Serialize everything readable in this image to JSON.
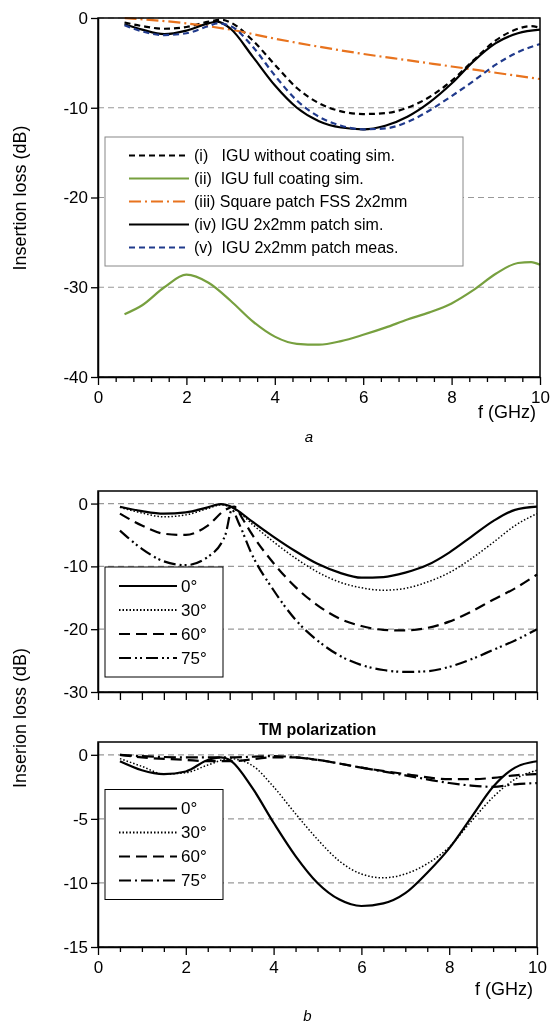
{
  "chart_data": [
    {
      "type": "line",
      "ylabel": "Insertion loss (dB)",
      "xlabel": "f (GHz)",
      "annotations": [
        "a"
      ],
      "xlim": [
        0,
        10
      ],
      "ylim": [
        -40,
        0
      ],
      "xticks": [
        0,
        {
          "value": 0.4,
          "label": null
        },
        {
          "value": 0.8,
          "label": null
        },
        {
          "value": 1.2,
          "label": null
        },
        {
          "value": 1.6,
          "label": null
        },
        2,
        {
          "value": 2.4,
          "label": null
        },
        {
          "value": 2.8,
          "label": null
        },
        {
          "value": 3.2,
          "label": null
        },
        {
          "value": 3.6,
          "label": null
        },
        4,
        {
          "value": 4.4,
          "label": null
        },
        {
          "value": 4.8,
          "label": null
        },
        {
          "value": 5.2,
          "label": null
        },
        {
          "value": 5.6,
          "label": null
        },
        6,
        {
          "value": 6.4,
          "label": null
        },
        {
          "value": 6.8,
          "label": null
        },
        {
          "value": 7.2,
          "label": null
        },
        {
          "value": 7.6,
          "label": null
        },
        8,
        {
          "value": 8.4,
          "label": null
        },
        {
          "value": 8.8,
          "label": null
        },
        {
          "value": 9.2,
          "label": null
        },
        {
          "value": 9.6,
          "label": null
        },
        10
      ],
      "yticks": [
        -40,
        -30,
        -20,
        -10,
        0
      ],
      "grid": "y",
      "legend": "center left",
      "marker": "none",
      "series": [
        {
          "name": "(i)   IGU without coating sim.",
          "color": "#000000",
          "line_style": "dashed",
          "x": [
            0.6,
            1,
            1.5,
            2,
            2.5,
            2.8,
            3,
            3.5,
            4,
            4.5,
            5,
            5.5,
            6,
            6.5,
            7,
            7.5,
            8,
            8.5,
            9,
            9.5,
            9.8,
            10
          ],
          "values": [
            -0.5,
            -0.9,
            -1.2,
            -1.0,
            -0.4,
            -0.2,
            -0.5,
            -2.5,
            -5.2,
            -7.8,
            -9.5,
            -10.4,
            -10.7,
            -10.6,
            -10,
            -8.8,
            -7,
            -4.7,
            -2.5,
            -1.2,
            -0.9,
            -1.1
          ]
        },
        {
          "name": "(ii)  IGU full coating sim.",
          "color": "#77a03f",
          "line_style": "solid",
          "x": [
            0.6,
            1,
            1.5,
            2,
            2.5,
            3,
            3.5,
            4,
            4.5,
            5,
            5.5,
            6,
            6.5,
            7,
            7.5,
            8,
            8.5,
            9,
            9.5,
            9.8,
            10
          ],
          "values": [
            -33,
            -32,
            -30,
            -28.6,
            -29.5,
            -31.5,
            -33.8,
            -35.5,
            -36.3,
            -36.4,
            -36,
            -35.3,
            -34.5,
            -33.6,
            -32.8,
            -31.8,
            -30.3,
            -28.5,
            -27.3,
            -27.2,
            -27.5
          ]
        },
        {
          "name": "(iii) Square patch FSS 2x2mm",
          "color": "#e8731e",
          "line_style": "dashdot",
          "x": [
            0.6,
            2,
            3,
            4,
            5,
            6,
            7,
            8,
            9,
            10
          ],
          "values": [
            0,
            -0.6,
            -1.3,
            -2.3,
            -3.2,
            -4.0,
            -4.7,
            -5.4,
            -6.1,
            -6.8
          ]
        },
        {
          "name": "(iv) IGU 2x2mm patch sim.",
          "color": "#000000",
          "line_style": "solid",
          "x": [
            0.6,
            1,
            1.5,
            2,
            2.5,
            2.7,
            3,
            3.5,
            4,
            4.5,
            5,
            5.5,
            6,
            6.5,
            7,
            7.5,
            8,
            8.5,
            9,
            9.5,
            10
          ],
          "values": [
            -0.7,
            -1.3,
            -1.8,
            -1.4,
            -0.6,
            -0.4,
            -1.2,
            -4.3,
            -7.5,
            -10,
            -11.5,
            -12.2,
            -12.4,
            -12,
            -11,
            -9.4,
            -7.3,
            -4.8,
            -2.8,
            -1.7,
            -1.3
          ]
        },
        {
          "name": "(v)  IGU 2x2mm patch meas.",
          "color": "#203a8c",
          "line_style": "dashed",
          "x": [
            0.6,
            1,
            1.5,
            2,
            2.5,
            2.7,
            3,
            3.5,
            4,
            4.5,
            5,
            5.5,
            6,
            6.5,
            7,
            7.5,
            8,
            8.5,
            9,
            9.5,
            10
          ],
          "values": [
            -0.8,
            -1.5,
            -1.9,
            -1.7,
            -0.9,
            -0.6,
            -0.9,
            -3.2,
            -6.4,
            -9.2,
            -11,
            -12,
            -12.4,
            -12.3,
            -11.6,
            -10.3,
            -8.7,
            -7,
            -5.2,
            -3.8,
            -2.9
          ]
        }
      ]
    },
    {
      "type": "line",
      "xlim": [
        0,
        10
      ],
      "ylim": [
        -30,
        2
      ],
      "tick_labels": "y",
      "xticks": [
        0,
        0.5,
        1,
        1.5,
        2,
        2.5,
        3,
        3.5,
        4,
        4.5,
        5,
        5.5,
        6,
        6.5,
        7,
        7.5,
        8,
        8.5,
        9,
        9.5,
        10
      ],
      "yticks": [
        -30,
        -20,
        -10,
        0
      ],
      "grid": "y",
      "legend": "bottom left",
      "marker": "none",
      "series": [
        {
          "name": "0°",
          "color": "#000000",
          "line_style": "solid",
          "x": [
            0.5,
            1,
            1.5,
            2,
            2.5,
            2.8,
            3,
            3.2,
            3.5,
            4,
            4.5,
            5,
            5.5,
            6,
            6.5,
            7,
            7.5,
            8,
            8.5,
            9,
            9.5,
            10
          ],
          "values": [
            -0.5,
            -1.2,
            -1.6,
            -1.4,
            -0.6,
            -0.1,
            -0.4,
            -1.2,
            -2.8,
            -5.3,
            -7.6,
            -9.6,
            -11,
            -11.8,
            -11.7,
            -11,
            -9.8,
            -7.8,
            -5.3,
            -2.8,
            -1.0,
            -0.5
          ]
        },
        {
          "name": "30°",
          "color": "#000000",
          "line_style": "dotted",
          "x": [
            0.5,
            1,
            1.5,
            2,
            2.5,
            2.8,
            3,
            3.2,
            3.5,
            4,
            4.5,
            5,
            5.5,
            6,
            6.5,
            7,
            7.5,
            8,
            8.5,
            9,
            9.5,
            10
          ],
          "values": [
            -0.6,
            -1.5,
            -2.1,
            -1.8,
            -0.8,
            -0.2,
            -0.5,
            -1.3,
            -3.2,
            -6.1,
            -8.7,
            -10.9,
            -12.5,
            -13.4,
            -13.8,
            -13.5,
            -12.5,
            -11,
            -8.8,
            -6.2,
            -3.5,
            -1.6
          ]
        },
        {
          "name": "60°",
          "color": "#000000",
          "line_style": "dashed",
          "x": [
            0.5,
            1,
            1.5,
            2,
            2.5,
            2.9,
            3.1,
            3.3,
            3.5,
            4,
            4.5,
            5,
            5.5,
            6,
            6.5,
            7,
            7.5,
            8,
            8.5,
            9,
            9.5,
            10
          ],
          "values": [
            -1.6,
            -3.5,
            -4.8,
            -5,
            -3.5,
            -1,
            -0.5,
            -2.5,
            -4.8,
            -9.5,
            -13.3,
            -16.2,
            -18.3,
            -19.5,
            -20.1,
            -20.2,
            -19.8,
            -18.8,
            -17.2,
            -15.3,
            -13.5,
            -11.3
          ]
        },
        {
          "name": "75°",
          "color": "#000000",
          "line_style": "dashdotdot",
          "x": [
            0.5,
            1,
            1.5,
            2,
            2.5,
            2.9,
            3.05,
            3.2,
            3.5,
            4,
            4.5,
            5,
            5.5,
            6,
            6.5,
            7,
            7.5,
            8,
            8.5,
            9,
            9.5,
            10
          ],
          "values": [
            -4.3,
            -7.2,
            -9.2,
            -9.8,
            -8.5,
            -5,
            -1,
            -3,
            -8,
            -13.8,
            -18.5,
            -21.8,
            -24.2,
            -25.7,
            -26.5,
            -26.8,
            -26.7,
            -26,
            -24.8,
            -23.3,
            -21.8,
            -20
          ]
        }
      ]
    },
    {
      "type": "line",
      "title": "TM polarization",
      "ylabel": "Inserion loss (dB)",
      "xlabel": "f (GHz)",
      "annotations": [
        "b"
      ],
      "xlim": [
        0,
        10
      ],
      "ylim": [
        -15,
        1
      ],
      "xticks": [
        0,
        {
          "value": 0.5,
          "label": null
        },
        {
          "value": 1,
          "label": null
        },
        {
          "value": 1.5,
          "label": null
        },
        2,
        {
          "value": 2.5,
          "label": null
        },
        {
          "value": 3,
          "label": null
        },
        {
          "value": 3.5,
          "label": null
        },
        4,
        {
          "value": 4.5,
          "label": null
        },
        {
          "value": 5,
          "label": null
        },
        {
          "value": 5.5,
          "label": null
        },
        6,
        {
          "value": 6.5,
          "label": null
        },
        {
          "value": 7,
          "label": null
        },
        {
          "value": 7.5,
          "label": null
        },
        8,
        {
          "value": 8.5,
          "label": null
        },
        {
          "value": 9,
          "label": null
        },
        {
          "value": 9.5,
          "label": null
        },
        10
      ],
      "yticks": [
        -15,
        -10,
        -5,
        0
      ],
      "grid": "y",
      "legend": "center left",
      "marker": "none",
      "series": [
        {
          "name": "0°",
          "color": "#000000",
          "line_style": "solid",
          "x": [
            0.5,
            1,
            1.5,
            2,
            2.5,
            2.8,
            3,
            3.5,
            4,
            4.5,
            5,
            5.5,
            6,
            6.5,
            7,
            7.5,
            8,
            8.5,
            9,
            9.5,
            10
          ],
          "values": [
            -0.5,
            -1.2,
            -1.5,
            -1.3,
            -0.4,
            -0.2,
            -0.4,
            -2.5,
            -5.3,
            -7.9,
            -10,
            -11.3,
            -11.8,
            -11.6,
            -10.8,
            -9.2,
            -7.3,
            -4.9,
            -2.5,
            -1.0,
            -0.5
          ]
        },
        {
          "name": "30°",
          "color": "#000000",
          "line_style": "dotted",
          "x": [
            0.5,
            1,
            1.5,
            2,
            2.5,
            3,
            3.5,
            4,
            4.5,
            5,
            5.5,
            6,
            6.5,
            7,
            7.5,
            8,
            8.5,
            9,
            9.5,
            10
          ],
          "values": [
            -0.3,
            -0.9,
            -1.5,
            -1.4,
            -0.8,
            -0.3,
            -0.8,
            -2.5,
            -4.6,
            -6.6,
            -8.3,
            -9.3,
            -9.6,
            -9.3,
            -8.5,
            -7.2,
            -5.2,
            -3.3,
            -1.9,
            -1.2
          ]
        },
        {
          "name": "60°",
          "color": "#000000",
          "line_style": "dashed",
          "x": [
            0.5,
            1,
            2,
            2.5,
            3,
            4,
            4.5,
            5,
            6,
            7,
            8,
            8.5,
            9,
            9.5,
            10
          ],
          "values": [
            0,
            -0.2,
            -0.4,
            -0.5,
            -0.5,
            -0.2,
            -0.2,
            -0.4,
            -1.0,
            -1.5,
            -1.9,
            -1.9,
            -1.8,
            -1.6,
            -1.5
          ]
        },
        {
          "name": "75°",
          "color": "#000000",
          "line_style": "dashdot",
          "x": [
            0.5,
            1,
            2,
            3,
            4,
            5,
            6,
            7,
            8,
            8.5,
            9,
            9.5,
            10
          ],
          "values": [
            0,
            -0.1,
            -0.2,
            -0.2,
            -0.1,
            -0.4,
            -1.0,
            -1.6,
            -2.2,
            -2.4,
            -2.5,
            -2.3,
            -2.2
          ]
        }
      ]
    }
  ]
}
